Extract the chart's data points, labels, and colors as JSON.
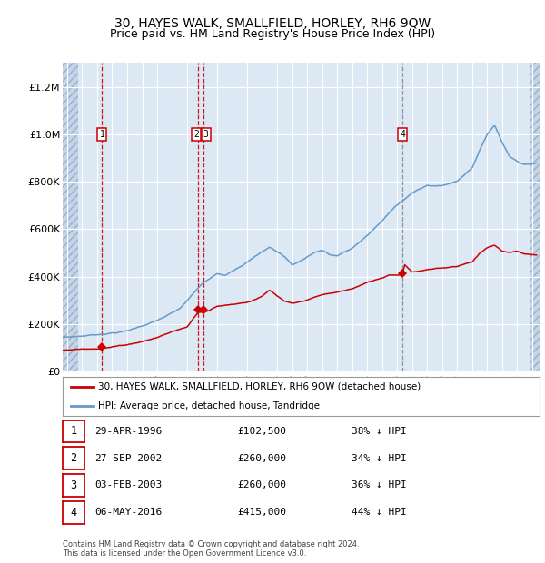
{
  "title": "30, HAYES WALK, SMALLFIELD, HORLEY, RH6 9QW",
  "subtitle": "Price paid vs. HM Land Registry's House Price Index (HPI)",
  "legend_red": "30, HAYES WALK, SMALLFIELD, HORLEY, RH6 9QW (detached house)",
  "legend_blue": "HPI: Average price, detached house, Tandridge",
  "footer1": "Contains HM Land Registry data © Crown copyright and database right 2024.",
  "footer2": "This data is licensed under the Open Government Licence v3.0.",
  "transactions": [
    {
      "label": "1",
      "date_num": 1996.33,
      "price": 102500,
      "color": "red"
    },
    {
      "label": "2",
      "date_num": 2002.74,
      "price": 260000,
      "color": "red"
    },
    {
      "label": "3",
      "date_num": 2003.09,
      "price": 260000,
      "color": "red"
    },
    {
      "label": "4",
      "date_num": 2016.35,
      "price": 415000,
      "color": "gray"
    }
  ],
  "table_rows": [
    [
      "1",
      "29-APR-1996",
      "£102,500",
      "38% ↓ HPI"
    ],
    [
      "2",
      "27-SEP-2002",
      "£260,000",
      "34% ↓ HPI"
    ],
    [
      "3",
      "03-FEB-2003",
      "£260,000",
      "36% ↓ HPI"
    ],
    [
      "4",
      "06-MAY-2016",
      "£415,000",
      "44% ↓ HPI"
    ]
  ],
  "ylim": [
    0,
    1300000
  ],
  "yticks": [
    0,
    200000,
    400000,
    600000,
    800000,
    1000000,
    1200000
  ],
  "xlim_start": 1993.7,
  "xlim_end": 2025.5,
  "hatched_left_end": 1994.75,
  "hatched_right_start": 2024.83,
  "plot_bg_color": "#dce9f5",
  "hatch_bg_color": "#c5d5e8",
  "red_color": "#cc0000",
  "blue_color": "#6699cc",
  "grid_color": "#ffffff",
  "title_fontsize": 10,
  "subtitle_fontsize": 9,
  "hpi_anchors": [
    [
      1993.7,
      145000
    ],
    [
      1994.5,
      148000
    ],
    [
      1996.0,
      158000
    ],
    [
      1998.0,
      175000
    ],
    [
      2000.0,
      220000
    ],
    [
      2001.5,
      265000
    ],
    [
      2003.0,
      370000
    ],
    [
      2004.0,
      410000
    ],
    [
      2004.5,
      405000
    ],
    [
      2007.5,
      530000
    ],
    [
      2008.5,
      490000
    ],
    [
      2009.0,
      455000
    ],
    [
      2009.5,
      470000
    ],
    [
      2010.5,
      510000
    ],
    [
      2011.0,
      520000
    ],
    [
      2011.5,
      500000
    ],
    [
      2012.0,
      495000
    ],
    [
      2013.0,
      525000
    ],
    [
      2014.0,
      580000
    ],
    [
      2015.0,
      640000
    ],
    [
      2016.0,
      710000
    ],
    [
      2017.0,
      760000
    ],
    [
      2018.0,
      790000
    ],
    [
      2019.0,
      790000
    ],
    [
      2020.0,
      810000
    ],
    [
      2021.0,
      870000
    ],
    [
      2022.0,
      1010000
    ],
    [
      2022.5,
      1050000
    ],
    [
      2023.0,
      980000
    ],
    [
      2023.5,
      920000
    ],
    [
      2024.0,
      900000
    ],
    [
      2024.5,
      890000
    ],
    [
      2025.3,
      895000
    ]
  ],
  "pp_anchors": [
    [
      1993.7,
      90000
    ],
    [
      1994.5,
      93000
    ],
    [
      1996.33,
      102500
    ],
    [
      1997.0,
      108000
    ],
    [
      1998.0,
      118000
    ],
    [
      1999.0,
      133000
    ],
    [
      2000.0,
      150000
    ],
    [
      2001.0,
      175000
    ],
    [
      2002.0,
      195000
    ],
    [
      2002.74,
      260000
    ],
    [
      2003.09,
      260000
    ],
    [
      2003.5,
      270000
    ],
    [
      2004.0,
      285000
    ],
    [
      2005.0,
      295000
    ],
    [
      2006.0,
      305000
    ],
    [
      2007.0,
      330000
    ],
    [
      2007.5,
      355000
    ],
    [
      2008.5,
      305000
    ],
    [
      2009.0,
      295000
    ],
    [
      2009.5,
      300000
    ],
    [
      2010.0,
      310000
    ],
    [
      2011.0,
      330000
    ],
    [
      2012.0,
      340000
    ],
    [
      2013.0,
      355000
    ],
    [
      2014.0,
      380000
    ],
    [
      2015.0,
      400000
    ],
    [
      2015.5,
      415000
    ],
    [
      2016.35,
      415000
    ],
    [
      2016.5,
      460000
    ],
    [
      2017.0,
      430000
    ],
    [
      2018.0,
      440000
    ],
    [
      2019.0,
      445000
    ],
    [
      2020.0,
      455000
    ],
    [
      2021.0,
      475000
    ],
    [
      2021.5,
      510000
    ],
    [
      2022.0,
      535000
    ],
    [
      2022.5,
      545000
    ],
    [
      2023.0,
      520000
    ],
    [
      2023.5,
      515000
    ],
    [
      2024.0,
      520000
    ],
    [
      2024.5,
      510000
    ],
    [
      2025.3,
      505000
    ]
  ]
}
